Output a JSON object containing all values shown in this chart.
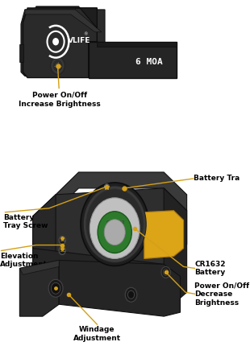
{
  "bg_color": "#ffffff",
  "top_device": {
    "body_color": "#2a2a2a",
    "annotation": "Power On/Off\nIncrease Brightness",
    "annotation_color": "#000000",
    "dot_color": "#d4a017",
    "text_label": "6 MOA"
  },
  "bottom_device": {
    "body_color": "#252525",
    "annotation_color": "#000000",
    "line_color": "#d4a017",
    "battery_tray_label": "Battery Tra",
    "battery_tray_screw_label": "Battery\nTray Screw",
    "elevation_label": "Elevation\nAdjustment",
    "cr1632_label": "CR1632\nBattery",
    "power_label": "Power On/Off\nDecrease\nBrightness",
    "windage_label": "Windage\nAdjustment"
  }
}
